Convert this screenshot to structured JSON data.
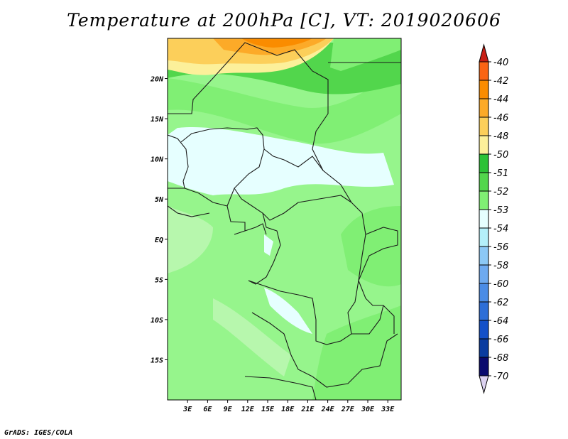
{
  "title": "Temperature at 200hPa [C], VT: 2019020606",
  "footer": "GrADS: IGES/COLA",
  "colors": {
    "background_band": "#96f58c",
    "frame": "#000000",
    "borders": "#1a1a1a"
  },
  "map": {
    "lon_labels": [
      "3E",
      "6E",
      "9E",
      "12E",
      "15E",
      "18E",
      "21E",
      "24E",
      "27E",
      "30E",
      "33E"
    ],
    "lon_values": [
      3,
      6,
      9,
      12,
      15,
      18,
      21,
      24,
      27,
      30,
      33
    ],
    "lon_range": [
      0,
      35
    ],
    "lat_labels": [
      "20N",
      "15N",
      "10N",
      "5N",
      "EQ",
      "5S",
      "10S",
      "15S"
    ],
    "lat_values": [
      20,
      15,
      10,
      5,
      0,
      -5,
      -10,
      -15
    ],
    "lat_range": [
      -20,
      25
    ]
  },
  "colorbar": {
    "levels": [
      "-40",
      "-42",
      "-44",
      "-46",
      "-48",
      "-50",
      "-51",
      "-52",
      "-53",
      "-54",
      "-56",
      "-58",
      "-60",
      "-62",
      "-64",
      "-66",
      "-68",
      "-70"
    ],
    "colors": [
      "#f03c1e",
      "#fa6414",
      "#fa8c00",
      "#fcaa28",
      "#fccf5a",
      "#fcf09a",
      "#2bc236",
      "#52d64c",
      "#80ef74",
      "#e6ffff",
      "#b4f0fa",
      "#8cc8f5",
      "#6eaaf0",
      "#4b8ce6",
      "#2d6ed7",
      "#1450c8",
      "#0a3ca0",
      "#0a0a6e"
    ],
    "top_arrow_color": "#c81e14",
    "bottom_arrow_color": "#dcd2f0"
  }
}
